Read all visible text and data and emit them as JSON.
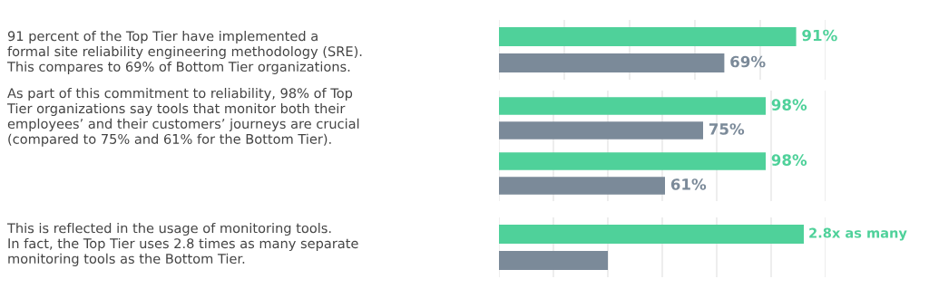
{
  "chart_data": [
    {
      "type": "bar",
      "orientation": "horizontal",
      "categories": [
        null
      ],
      "xlim": [
        0,
        100
      ],
      "xticks": [
        {
          "value": 0,
          "label": null
        },
        {
          "value": 20,
          "label": null
        },
        {
          "value": 40,
          "label": null
        },
        {
          "value": 60,
          "label": null
        },
        {
          "value": 80,
          "label": null
        },
        {
          "value": 100,
          "label": null
        }
      ],
      "grid": "x",
      "series": [
        {
          "color": "#4fd19a",
          "values": [
            91
          ],
          "value_labels": [
            "91%"
          ]
        },
        {
          "color": "#7b8a99",
          "values": [
            69
          ],
          "value_labels": [
            "69%"
          ]
        }
      ],
      "annotations": [
        "91 percent of the Top Tier have implemented a\nformal site reliability engineering methodology (SRE).\nThis compares to 69% of Bottom Tier organizations."
      ]
    },
    {
      "type": "bar",
      "orientation": "horizontal",
      "categories": [
        null,
        null
      ],
      "xlim": [
        0,
        120
      ],
      "xticks": [
        {
          "value": 0,
          "label": null
        },
        {
          "value": 20,
          "label": null
        },
        {
          "value": 40,
          "label": null
        },
        {
          "value": 60,
          "label": null
        },
        {
          "value": 80,
          "label": null
        },
        {
          "value": 100,
          "label": null
        },
        {
          "value": 120,
          "label": null
        }
      ],
      "grid": "x",
      "series": [
        {
          "color": "#4fd19a",
          "values": [
            98,
            98
          ],
          "value_labels": [
            "98%",
            "98%"
          ]
        },
        {
          "color": "#7b8a99",
          "values": [
            75,
            61
          ],
          "value_labels": [
            "75%",
            "61%"
          ]
        }
      ],
      "annotations": [
        "As part of this commitment to reliability, 98% of Top\nTier organizations say tools that monitor both their\nemployees’ and their customers’ journeys are crucial\n(compared to 75% and 61% for the Bottom Tier)."
      ]
    },
    {
      "type": "bar",
      "orientation": "horizontal",
      "categories": [
        null
      ],
      "xlim": [
        0,
        3
      ],
      "xticks": [
        {
          "value": 0,
          "label": null
        },
        {
          "value": 0.5,
          "label": null
        },
        {
          "value": 1,
          "label": null
        },
        {
          "value": 1.5,
          "label": null
        },
        {
          "value": 2,
          "label": null
        },
        {
          "value": 2.5,
          "label": null
        },
        {
          "value": 3,
          "label": null
        }
      ],
      "grid": "x",
      "series": [
        {
          "color": "#4fd19a",
          "values": [
            2.8
          ],
          "value_labels": [
            "2.8x as many"
          ]
        },
        {
          "color": "#7b8a99",
          "values": [
            1
          ],
          "value_labels": [
            null
          ]
        }
      ],
      "annotations": [
        "This is reflected in the usage of monitoring tools.\nIn fact, the Top Tier uses 2.8 times as many separate\nmonitoring tools as the Bottom Tier."
      ]
    }
  ]
}
